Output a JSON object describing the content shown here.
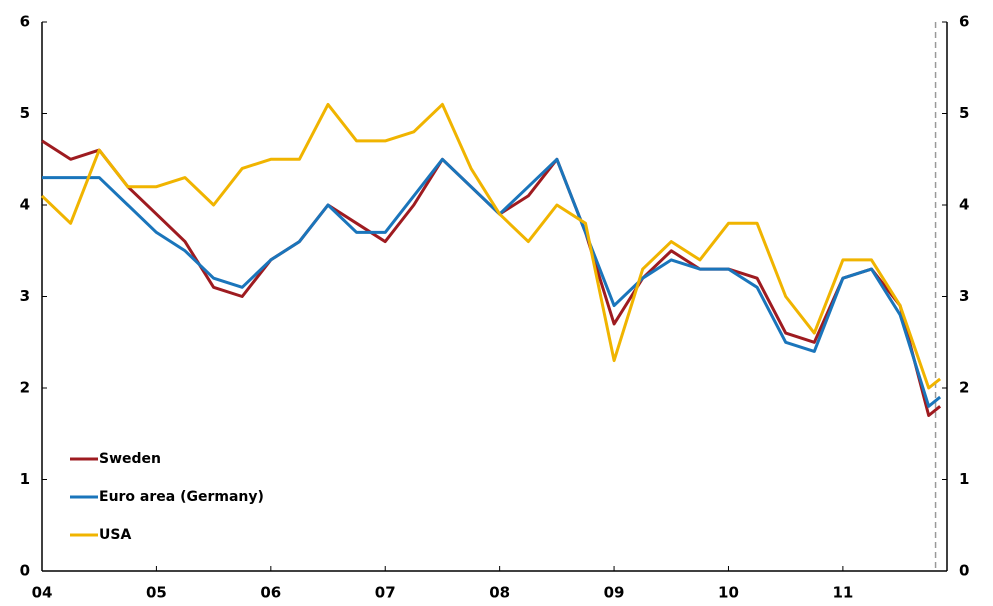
{
  "chart_data": {
    "type": "line",
    "x": [
      2004.0,
      2004.25,
      2004.5,
      2004.75,
      2005.0,
      2005.25,
      2005.5,
      2005.75,
      2006.0,
      2006.25,
      2006.5,
      2006.75,
      2007.0,
      2007.25,
      2007.5,
      2007.75,
      2008.0,
      2008.25,
      2008.5,
      2008.75,
      2009.0,
      2009.25,
      2009.5,
      2009.75,
      2010.0,
      2010.25,
      2010.5,
      2010.75,
      2011.0,
      2011.25,
      2011.5,
      2011.75,
      2011.85
    ],
    "series": [
      {
        "name": "Sweden",
        "color": "#9e1b20",
        "values": [
          4.7,
          4.5,
          4.6,
          4.2,
          3.9,
          3.6,
          3.1,
          3.0,
          3.4,
          3.6,
          4.0,
          3.8,
          3.6,
          4.0,
          4.5,
          4.2,
          3.9,
          4.1,
          4.5,
          3.7,
          2.7,
          3.2,
          3.5,
          3.3,
          3.3,
          3.2,
          2.6,
          2.5,
          3.2,
          3.3,
          2.9,
          1.7,
          1.8
        ]
      },
      {
        "name": "Euro area (Germany)",
        "color": "#1a75bb",
        "values": [
          4.3,
          4.3,
          4.3,
          4.0,
          3.7,
          3.5,
          3.2,
          3.1,
          3.4,
          3.6,
          4.0,
          3.7,
          3.7,
          4.1,
          4.5,
          4.2,
          3.9,
          4.2,
          4.5,
          3.7,
          2.9,
          3.2,
          3.4,
          3.3,
          3.3,
          3.1,
          2.5,
          2.4,
          3.2,
          3.3,
          2.8,
          1.8,
          1.9
        ]
      },
      {
        "name": "USA",
        "color": "#f0b400",
        "values": [
          4.1,
          3.8,
          4.6,
          4.2,
          4.2,
          4.3,
          4.0,
          4.4,
          4.5,
          4.5,
          5.1,
          4.7,
          4.7,
          4.8,
          5.1,
          4.4,
          3.9,
          3.6,
          4.0,
          3.8,
          2.3,
          3.3,
          3.6,
          3.4,
          3.8,
          3.8,
          3.0,
          2.6,
          3.4,
          3.4,
          2.9,
          2.0,
          2.1
        ]
      }
    ],
    "xlim": [
      2004,
      2011.91
    ],
    "xticks": [
      {
        "value": 2004,
        "label": "04"
      },
      {
        "value": 2005,
        "label": "05"
      },
      {
        "value": 2006,
        "label": "06"
      },
      {
        "value": 2007,
        "label": "07"
      },
      {
        "value": 2008,
        "label": "08"
      },
      {
        "value": 2009,
        "label": "09"
      },
      {
        "value": 2010,
        "label": "10"
      },
      {
        "value": 2011,
        "label": "11"
      }
    ],
    "ylim": [
      0,
      6
    ],
    "yticks": [
      0,
      1,
      2,
      3,
      4,
      5,
      6
    ],
    "y2lim": [
      0,
      6
    ],
    "y2ticks": [
      0,
      1,
      2,
      3,
      4,
      5,
      6
    ],
    "vline": 2011.81,
    "legend": "lower-left"
  }
}
